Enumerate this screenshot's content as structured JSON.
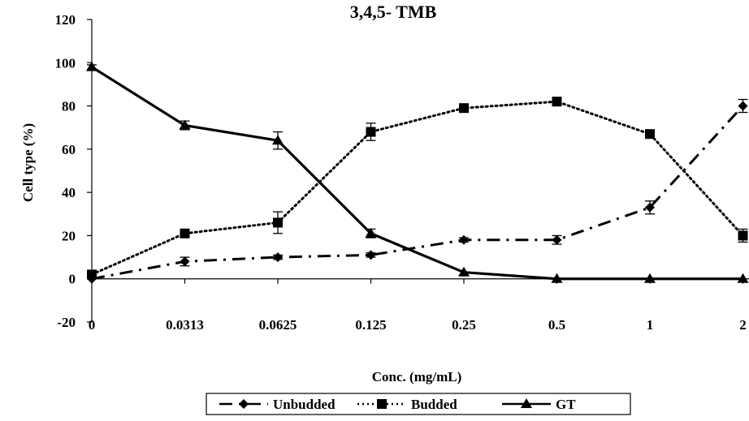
{
  "chart_data": {
    "type": "line",
    "title": "3,4,5- TMB",
    "xlabel": "Conc. (mg/mL)",
    "ylabel": "Cell type (%)",
    "ylim": [
      -20,
      120
    ],
    "yticks": [
      "120",
      "100",
      "80",
      "60",
      "40",
      "20",
      "0",
      "-20"
    ],
    "categories": [
      "0",
      "0.0313",
      "0.0625",
      "0.125",
      "0.25",
      "0.5",
      "1",
      "2"
    ],
    "grid": false,
    "legend_position": "bottom",
    "series": [
      {
        "name": "Unbudded",
        "line_style": "dash-dot",
        "marker": "diamond",
        "color": "#000000",
        "values": [
          0,
          8,
          10,
          11,
          18,
          18,
          33,
          80
        ],
        "errors": [
          0,
          2,
          1,
          1,
          1,
          2,
          3,
          3
        ]
      },
      {
        "name": "Budded",
        "line_style": "dotted",
        "marker": "square",
        "color": "#000000",
        "values": [
          2,
          21,
          26,
          68,
          79,
          82,
          67,
          20
        ],
        "errors": [
          0,
          1,
          5,
          4,
          1,
          1,
          1,
          3
        ]
      },
      {
        "name": "GT",
        "line_style": "solid",
        "marker": "triangle",
        "color": "#000000",
        "values": [
          98,
          71,
          64,
          21,
          3,
          0,
          0,
          0
        ],
        "errors": [
          1,
          2,
          4,
          2,
          0,
          0,
          0,
          0
        ]
      }
    ]
  }
}
